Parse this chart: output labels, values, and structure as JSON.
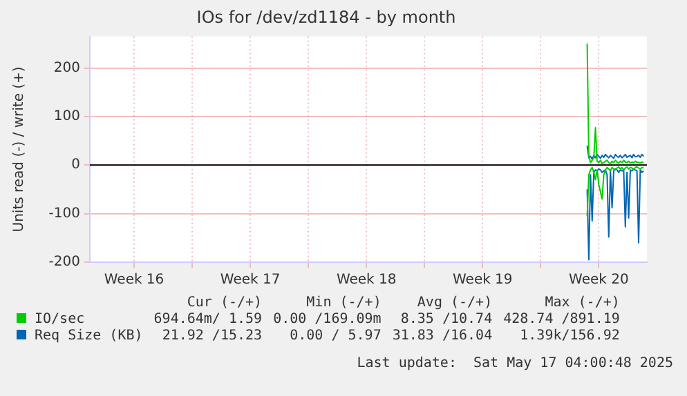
{
  "chart_data": {
    "type": "line",
    "title": "IOs for /dev/zd1184 - by month",
    "ylabel": "Units read (-) / write (+)",
    "x": [
      "2025-05-13T19:12",
      "2025-05-13T21:36",
      "2025-05-14T00:00",
      "2025-05-14T02:24",
      "2025-05-14T04:48",
      "2025-05-14T07:12",
      "2025-05-14T09:36",
      "2025-05-14T12:00",
      "2025-05-14T14:24",
      "2025-05-14T16:48",
      "2025-05-14T19:12",
      "2025-05-14T21:36",
      "2025-05-15T00:00",
      "2025-05-15T02:24",
      "2025-05-15T04:48",
      "2025-05-15T07:12",
      "2025-05-15T09:36",
      "2025-05-15T12:00",
      "2025-05-15T14:24",
      "2025-05-15T16:48",
      "2025-05-15T19:12",
      "2025-05-15T21:36",
      "2025-05-16T00:00",
      "2025-05-16T02:24",
      "2025-05-16T04:48",
      "2025-05-16T07:12",
      "2025-05-16T09:36",
      "2025-05-16T12:00",
      "2025-05-16T14:24",
      "2025-05-16T16:48",
      "2025-05-16T19:12",
      "2025-05-16T21:36",
      "2025-05-17T00:00",
      "2025-05-17T02:24",
      "2025-05-17T04:48"
    ],
    "series": [
      {
        "color": "#00cc00",
        "values": [
          -105,
          -20,
          -10,
          -5,
          -15,
          -30,
          -10,
          -40,
          -55,
          -70,
          -20,
          -10,
          -5,
          -8,
          -12,
          -5,
          -8,
          -10,
          -6,
          -4,
          -8,
          -5,
          -10,
          -6,
          -4,
          -8,
          -5,
          -6,
          -10,
          -5,
          -4,
          -6,
          -8,
          -5,
          -6
        ]
      },
      {
        "name": "IO/sec",
        "color": "#00cc00",
        "values": [
          250,
          20,
          5,
          10,
          15,
          77,
          8,
          5,
          10,
          3,
          5,
          8,
          10,
          5,
          3,
          8,
          5,
          10,
          6,
          4,
          8,
          5,
          10,
          6,
          5,
          8,
          4,
          6,
          5,
          8,
          6,
          5,
          4,
          6,
          5
        ]
      },
      {
        "color": "#0066b3",
        "values": [
          -50,
          -195,
          -20,
          -115,
          -15,
          -10,
          -12,
          -8,
          -10,
          -15,
          -12,
          -10,
          -20,
          -148,
          -10,
          -88,
          -12,
          -8,
          -10,
          -15,
          -10,
          -12,
          -10,
          -127,
          -15,
          -109,
          -10,
          -12,
          -8,
          -10,
          -12,
          -160,
          -10,
          -15,
          -12
        ]
      },
      {
        "name": "Req Size (KB)",
        "color": "#0066b3",
        "values": [
          40,
          15,
          18,
          12,
          20,
          15,
          22,
          18,
          14,
          20,
          16,
          22,
          18,
          15,
          20,
          17,
          14,
          22,
          18,
          16,
          20,
          15,
          18,
          22,
          16,
          18,
          20,
          15,
          22,
          17,
          18,
          20,
          16,
          22,
          18
        ]
      }
    ],
    "xlim": [
      "2025-04-13T20:00",
      "2025-05-17T09:36"
    ],
    "xticks": [
      {
        "value": "2025-04-16T12:00",
        "label": "Week 16"
      },
      {
        "value": "2025-04-20",
        "label": null
      },
      {
        "value": "2025-04-23T12:00",
        "label": "Week 17"
      },
      {
        "value": "2025-04-27",
        "label": null
      },
      {
        "value": "2025-04-30T12:00",
        "label": "Week 18"
      },
      {
        "value": "2025-05-04",
        "label": null
      },
      {
        "value": "2025-05-07T12:00",
        "label": "Week 19"
      },
      {
        "value": "2025-05-11",
        "label": null
      },
      {
        "value": "2025-05-14T12:00",
        "label": "Week 20"
      }
    ],
    "ylim": [
      -200,
      265
    ],
    "yticks": [
      -200,
      -100,
      0,
      100,
      200
    ],
    "ref_lines": [
      {
        "axis": "y",
        "value": 0,
        "color": "#000000"
      }
    ],
    "grid": true,
    "marker": "none",
    "line_style": "solid",
    "legend": "bottom",
    "annotations": [
      "Cur (-/+)",
      "Min (-/+)",
      "Avg (-/+)",
      "Max (-/+)",
      "694.64m/ 1.59",
      "0.00 /169.09m",
      "8.35 /10.74",
      "428.74 /891.19",
      "21.92 /15.23",
      "0.00 / 5.97",
      "31.83 /16.04",
      "1.39k/156.92",
      "Last update:  Sat May 17 04:00:48 2025"
    ]
  }
}
